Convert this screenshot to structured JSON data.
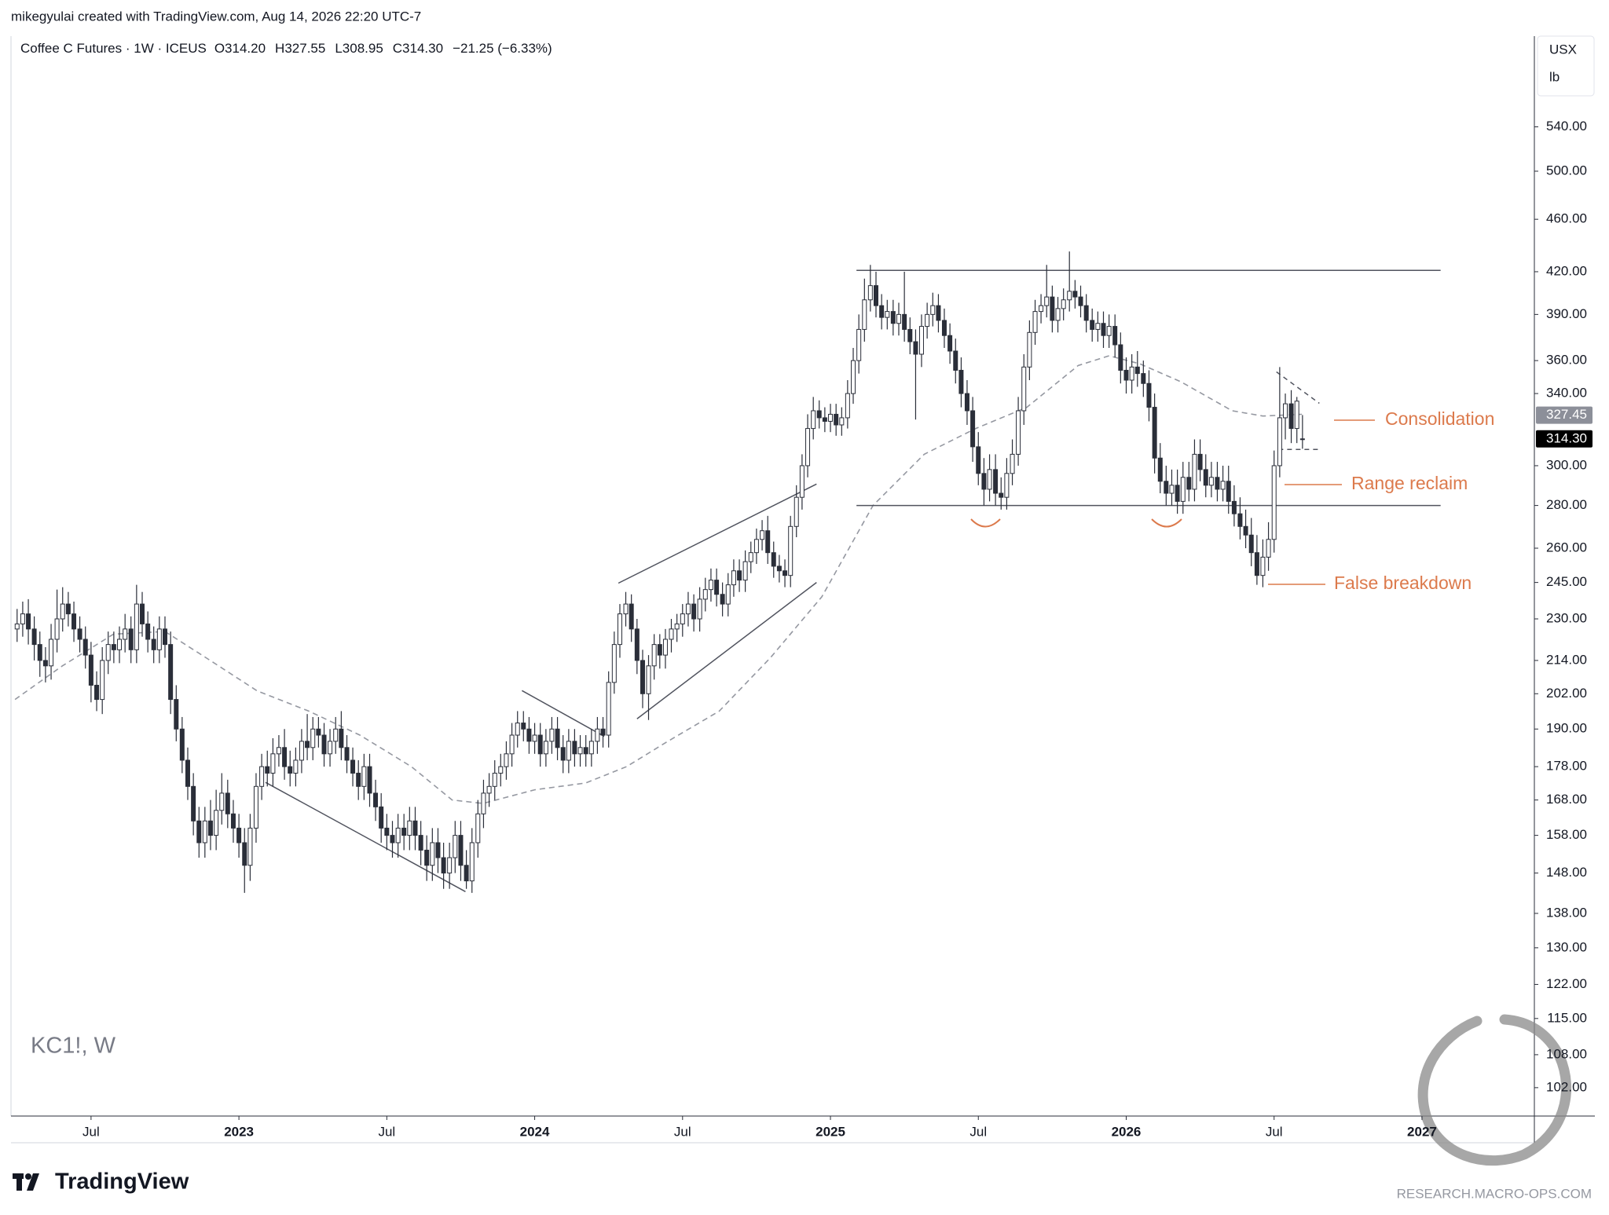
{
  "header": "mikegyulai created with TradingView.com, Aug 14, 2026 22:20 UTC-7",
  "footer": {
    "brand": "TradingView",
    "site": "RESEARCH.MACRO-OPS.COM"
  },
  "chart_data": {
    "type": "candlestick",
    "title": "Coffee C Futures · 1W · ICEUS",
    "legend_values": [
      "O314.20",
      "H327.55",
      "L308.95",
      "C314.30",
      "−21.25 (−6.33%)"
    ],
    "watermark": "KC1!, W",
    "currency": "USX",
    "unit": "lb",
    "log_scale": true,
    "grid": false,
    "up_color": "#ffffff",
    "down_color": "#2a2e39",
    "x": [
      2022.25,
      2022.269,
      2022.288,
      2022.308,
      2022.327,
      2022.346,
      2022.365,
      2022.385,
      2022.404,
      2022.423,
      2022.442,
      2022.462,
      2022.481,
      2022.5,
      2022.519,
      2022.538,
      2022.558,
      2022.577,
      2022.596,
      2022.615,
      2022.635,
      2022.654,
      2022.673,
      2022.692,
      2022.712,
      2022.731,
      2022.75,
      2022.769,
      2022.788,
      2022.808,
      2022.827,
      2022.846,
      2022.865,
      2022.885,
      2022.904,
      2022.923,
      2022.942,
      2022.962,
      2022.981,
      2023,
      2023.019,
      2023.038,
      2023.058,
      2023.077,
      2023.096,
      2023.115,
      2023.135,
      2023.154,
      2023.173,
      2023.192,
      2023.212,
      2023.231,
      2023.25,
      2023.269,
      2023.288,
      2023.308,
      2023.327,
      2023.346,
      2023.365,
      2023.385,
      2023.404,
      2023.423,
      2023.442,
      2023.462,
      2023.481,
      2023.5,
      2023.519,
      2023.538,
      2023.558,
      2023.577,
      2023.596,
      2023.615,
      2023.635,
      2023.654,
      2023.673,
      2023.692,
      2023.712,
      2023.731,
      2023.75,
      2023.769,
      2023.788,
      2023.808,
      2023.827,
      2023.846,
      2023.865,
      2023.885,
      2023.904,
      2023.923,
      2023.942,
      2023.962,
      2023.981,
      2024,
      2024.019,
      2024.038,
      2024.058,
      2024.077,
      2024.096,
      2024.115,
      2024.135,
      2024.154,
      2024.173,
      2024.192,
      2024.212,
      2024.231,
      2024.25,
      2024.269,
      2024.288,
      2024.308,
      2024.327,
      2024.346,
      2024.365,
      2024.385,
      2024.404,
      2024.423,
      2024.442,
      2024.462,
      2024.481,
      2024.5,
      2024.519,
      2024.538,
      2024.558,
      2024.577,
      2024.596,
      2024.615,
      2024.635,
      2024.654,
      2024.673,
      2024.692,
      2024.712,
      2024.731,
      2024.75,
      2024.769,
      2024.788,
      2024.808,
      2024.827,
      2024.846,
      2024.865,
      2024.885,
      2024.904,
      2024.923,
      2024.942,
      2024.962,
      2024.981,
      2025,
      2025.019,
      2025.038,
      2025.058,
      2025.077,
      2025.096,
      2025.115,
      2025.135,
      2025.154,
      2025.173,
      2025.192,
      2025.212,
      2025.231,
      2025.25,
      2025.269,
      2025.288,
      2025.308,
      2025.327,
      2025.346,
      2025.365,
      2025.385,
      2025.404,
      2025.423,
      2025.442,
      2025.462,
      2025.481,
      2025.5,
      2025.519,
      2025.538,
      2025.558,
      2025.577,
      2025.596,
      2025.615,
      2025.635,
      2025.654,
      2025.673,
      2025.692,
      2025.712,
      2025.731,
      2025.75,
      2025.769,
      2025.788,
      2025.808,
      2025.827,
      2025.846,
      2025.865,
      2025.885,
      2025.904,
      2025.923,
      2025.942,
      2025.962,
      2025.981,
      2026,
      2026.019,
      2026.038,
      2026.058,
      2026.077,
      2026.096,
      2026.115,
      2026.135,
      2026.154,
      2026.173,
      2026.192,
      2026.212,
      2026.231,
      2026.25,
      2026.269,
      2026.288,
      2026.308,
      2026.327,
      2026.346,
      2026.365,
      2026.385,
      2026.404,
      2026.423,
      2026.442,
      2026.462,
      2026.481,
      2026.5,
      2026.519,
      2026.538,
      2026.558,
      2026.577,
      2026.596
    ],
    "open": [
      226,
      228,
      232,
      226,
      220,
      214,
      212,
      222,
      230,
      236,
      232,
      226,
      222,
      216,
      205,
      200,
      214,
      220,
      218,
      222,
      226,
      218,
      236,
      228,
      222,
      218,
      226,
      220,
      200,
      190,
      180,
      172,
      162,
      156,
      162,
      158,
      165,
      170,
      164,
      160,
      156,
      150,
      160,
      172,
      178,
      176,
      182,
      184,
      178,
      176,
      180,
      186,
      184,
      190,
      188,
      182,
      186,
      190,
      184,
      180,
      176,
      172,
      178,
      170,
      166,
      160,
      158,
      156,
      160,
      158,
      162,
      158,
      154,
      150,
      156,
      152,
      148,
      152,
      158,
      150,
      146,
      156,
      164,
      170,
      172,
      176,
      178,
      182,
      188,
      192,
      190,
      186,
      188,
      182,
      186,
      190,
      184,
      180,
      186,
      182,
      184,
      182,
      186,
      190,
      188,
      206,
      220,
      232,
      236,
      226,
      214,
      202,
      212,
      220,
      216,
      222,
      226,
      228,
      232,
      236,
      230,
      238,
      242,
      246,
      240,
      236,
      244,
      250,
      246,
      254,
      258,
      264,
      268,
      258,
      252,
      250,
      248,
      270,
      284,
      300,
      320,
      330,
      326,
      324,
      328,
      322,
      326,
      340,
      360,
      380,
      400,
      410,
      396,
      388,
      392,
      384,
      390,
      380,
      372,
      364,
      382,
      390,
      396,
      386,
      376,
      366,
      354,
      340,
      330,
      310,
      296,
      288,
      298,
      286,
      284,
      296,
      306,
      330,
      356,
      378,
      392,
      396,
      402,
      386,
      394,
      400,
      406,
      402,
      396,
      386,
      380,
      384,
      376,
      382,
      370,
      354,
      348,
      356,
      352,
      346,
      332,
      304,
      292,
      286,
      290,
      282,
      294,
      288,
      306,
      298,
      290,
      294,
      288,
      292,
      282,
      276,
      270,
      266,
      258,
      248,
      256,
      264,
      300,
      326,
      334,
      320,
      314.2
    ],
    "high": [
      234,
      237,
      238,
      231,
      225,
      219,
      228,
      242,
      243,
      241,
      237,
      231,
      227,
      221,
      210,
      219,
      225,
      225,
      227,
      232,
      231,
      244,
      241,
      233,
      227,
      231,
      231,
      225,
      205,
      194,
      184,
      176,
      166,
      166,
      168,
      171,
      176,
      174,
      168,
      164,
      160,
      164,
      176,
      182,
      183,
      187,
      188,
      190,
      183,
      184,
      190,
      195,
      194,
      194,
      192,
      190,
      194,
      196,
      188,
      184,
      180,
      182,
      182,
      174,
      170,
      164,
      162,
      164,
      164,
      166,
      166,
      162,
      158,
      160,
      160,
      156,
      156,
      162,
      162,
      154,
      160,
      168,
      174,
      176,
      180,
      182,
      186,
      192,
      196,
      196,
      194,
      192,
      192,
      190,
      194,
      194,
      188,
      190,
      190,
      188,
      188,
      190,
      194,
      194,
      210,
      225,
      236,
      241,
      240,
      230,
      218,
      216,
      224,
      224,
      226,
      230,
      232,
      236,
      241,
      240,
      243,
      247,
      251,
      251,
      245,
      249,
      255,
      255,
      259,
      263,
      269,
      273,
      275,
      263,
      257,
      255,
      275,
      290,
      306,
      328,
      338,
      336,
      332,
      334,
      334,
      332,
      348,
      368,
      390,
      415,
      425,
      420,
      404,
      400,
      400,
      398,
      420,
      388,
      380,
      390,
      398,
      405,
      404,
      394,
      384,
      374,
      362,
      348,
      338,
      318,
      304,
      306,
      306,
      294,
      304,
      314,
      338,
      364,
      386,
      400,
      404,
      425,
      410,
      402,
      408,
      435,
      414,
      410,
      404,
      394,
      392,
      392,
      390,
      390,
      378,
      362,
      364,
      366,
      360,
      354,
      340,
      312,
      300,
      298,
      298,
      302,
      302,
      314,
      314,
      306,
      302,
      302,
      300,
      300,
      290,
      284,
      278,
      274,
      266,
      264,
      272,
      308,
      356,
      340,
      342,
      338,
      327.55
    ],
    "low": [
      221,
      223,
      220,
      214,
      208,
      206,
      207,
      217,
      225,
      227,
      221,
      217,
      211,
      199,
      196,
      195,
      209,
      213,
      213,
      217,
      213,
      213,
      223,
      217,
      213,
      213,
      215,
      195,
      186,
      176,
      168,
      158,
      152,
      152,
      154,
      154,
      161,
      160,
      156,
      152,
      143,
      146,
      156,
      168,
      172,
      172,
      178,
      174,
      172,
      172,
      176,
      180,
      180,
      184,
      178,
      178,
      182,
      180,
      176,
      172,
      168,
      168,
      166,
      162,
      156,
      154,
      152,
      152,
      154,
      154,
      154,
      150,
      146,
      146,
      148,
      144,
      144,
      148,
      146,
      144,
      143,
      152,
      160,
      166,
      168,
      172,
      174,
      178,
      184,
      186,
      182,
      182,
      178,
      178,
      182,
      180,
      176,
      176,
      178,
      178,
      178,
      178,
      182,
      184,
      184,
      202,
      215,
      227,
      221,
      209,
      197,
      193,
      207,
      211,
      211,
      217,
      221,
      223,
      227,
      225,
      225,
      233,
      237,
      235,
      231,
      231,
      239,
      241,
      241,
      249,
      253,
      259,
      253,
      247,
      245,
      243,
      243,
      265,
      278,
      294,
      314,
      320,
      318,
      318,
      316,
      316,
      320,
      334,
      352,
      372,
      392,
      388,
      380,
      380,
      376,
      376,
      372,
      364,
      325,
      356,
      374,
      382,
      378,
      368,
      358,
      346,
      332,
      322,
      302,
      290,
      280,
      282,
      280,
      278,
      278,
      290,
      300,
      322,
      348,
      370,
      384,
      388,
      378,
      378,
      386,
      392,
      394,
      388,
      378,
      372,
      372,
      368,
      368,
      362,
      346,
      340,
      340,
      344,
      338,
      324,
      296,
      286,
      280,
      280,
      276,
      276,
      282,
      282,
      292,
      284,
      284,
      282,
      282,
      276,
      270,
      264,
      260,
      252,
      244,
      243,
      250,
      258,
      294,
      314,
      312,
      312,
      308.95
    ],
    "close": [
      228,
      232,
      226,
      220,
      214,
      212,
      222,
      230,
      236,
      232,
      226,
      222,
      216,
      205,
      200,
      214,
      220,
      218,
      222,
      226,
      218,
      236,
      228,
      222,
      218,
      226,
      220,
      200,
      190,
      180,
      172,
      162,
      156,
      162,
      158,
      165,
      170,
      164,
      160,
      156,
      150,
      160,
      172,
      178,
      176,
      182,
      184,
      178,
      176,
      180,
      186,
      184,
      190,
      188,
      182,
      186,
      190,
      184,
      180,
      176,
      172,
      178,
      170,
      166,
      160,
      158,
      156,
      160,
      158,
      162,
      158,
      154,
      150,
      156,
      152,
      148,
      152,
      158,
      150,
      146,
      156,
      164,
      170,
      172,
      176,
      178,
      182,
      188,
      192,
      190,
      186,
      188,
      182,
      186,
      190,
      184,
      180,
      186,
      182,
      184,
      182,
      186,
      190,
      188,
      206,
      220,
      232,
      236,
      226,
      214,
      202,
      212,
      220,
      216,
      222,
      226,
      228,
      232,
      236,
      230,
      238,
      242,
      246,
      240,
      236,
      244,
      250,
      246,
      254,
      258,
      264,
      268,
      258,
      252,
      250,
      248,
      270,
      284,
      300,
      320,
      330,
      326,
      324,
      328,
      322,
      326,
      340,
      360,
      380,
      400,
      410,
      396,
      388,
      392,
      384,
      390,
      380,
      372,
      364,
      382,
      390,
      396,
      386,
      376,
      366,
      354,
      340,
      330,
      310,
      296,
      288,
      298,
      286,
      284,
      296,
      306,
      330,
      356,
      378,
      392,
      396,
      402,
      386,
      394,
      400,
      406,
      402,
      396,
      386,
      380,
      384,
      376,
      382,
      370,
      354,
      348,
      356,
      352,
      346,
      332,
      304,
      292,
      286,
      290,
      282,
      294,
      288,
      306,
      298,
      290,
      294,
      288,
      292,
      282,
      276,
      270,
      266,
      258,
      248,
      256,
      264,
      300,
      326,
      334,
      320,
      335.55,
      314.3
    ],
    "ma": {
      "color": "#9598a1",
      "x": [
        2022.243,
        2022.403,
        2022.576,
        2022.75,
        2022.889,
        2023.062,
        2023.236,
        2023.409,
        2023.583,
        2023.721,
        2023.825,
        2024.0,
        2024.172,
        2024.311,
        2024.45,
        2024.624,
        2024.797,
        2024.971,
        2025.144,
        2025.317,
        2025.491,
        2025.664,
        2025.838,
        2025.942,
        2026.046,
        2026.185,
        2026.358,
        2026.462,
        2026.594
      ],
      "values": [
        200,
        212,
        224,
        225,
        215,
        203,
        196,
        188,
        178,
        168,
        167,
        171,
        173,
        178,
        186,
        196,
        215,
        239,
        280,
        306,
        320,
        332,
        357,
        363,
        358,
        347,
        330,
        327,
        328
      ]
    },
    "trendlines": [
      {
        "x": [
          2025.088,
          2027.063
        ],
        "y": [
          421,
          421
        ],
        "style": "solid"
      },
      {
        "x": [
          2025.088,
          2027.063
        ],
        "y": [
          280,
          280
        ],
        "style": "solid"
      },
      {
        "x": [
          2023.09,
          2023.766
        ],
        "y": [
          173.2,
          143.3
        ],
        "style": "solid"
      },
      {
        "x": [
          2023.957,
          2024.235
        ],
        "y": [
          203.1,
          187.6
        ],
        "style": "solid"
      },
      {
        "x": [
          2024.283,
          2024.953
        ],
        "y": [
          244.7,
          290.6
        ],
        "style": "solid"
      },
      {
        "x": [
          2024.346,
          2024.953
        ],
        "y": [
          193.4,
          245
        ],
        "style": "solid"
      },
      {
        "x": [
          2026.508,
          2026.653
        ],
        "y": [
          353,
          334.3
        ],
        "style": "dashed"
      },
      {
        "x": [
          2026.515,
          2026.653
        ],
        "y": [
          308.6,
          308.6
        ],
        "style": "dashed"
      }
    ],
    "line_color": "#50535e",
    "annotations": [
      "Consolidation",
      "Range reclaim",
      "False breakdown"
    ],
    "annotation_color": "#dc7a4c",
    "price_labels": [
      327.45,
      {
        "value": 314.3,
        "label": "314.30"
      }
    ],
    "price_label_colors": [
      "#8c8f99",
      "#000000"
    ],
    "xlim": [
      2022.24,
      2027.38
    ],
    "ylim": [
      97.1,
      632
    ],
    "xticks": [
      {
        "value": 2022.5,
        "label": "Jul"
      },
      2023,
      {
        "value": 2023.5,
        "label": "Jul"
      },
      2024,
      {
        "value": 2024.5,
        "label": "Jul"
      },
      2025,
      {
        "value": 2025.5,
        "label": "Jul"
      },
      2026,
      {
        "value": 2026.5,
        "label": "Jul"
      },
      2027
    ],
    "yticks": [
      {
        "value": 102,
        "label": "102.00"
      },
      {
        "value": 108,
        "label": "108.00"
      },
      {
        "value": 115,
        "label": "115.00"
      },
      {
        "value": 122,
        "label": "122.00"
      },
      {
        "value": 130,
        "label": "130.00"
      },
      {
        "value": 138,
        "label": "138.00"
      },
      {
        "value": 148,
        "label": "148.00"
      },
      {
        "value": 158,
        "label": "158.00"
      },
      {
        "value": 168,
        "label": "168.00"
      },
      {
        "value": 178,
        "label": "178.00"
      },
      {
        "value": 190,
        "label": "190.00"
      },
      {
        "value": 202,
        "label": "202.00"
      },
      {
        "value": 214,
        "label": "214.00"
      },
      {
        "value": 230,
        "label": "230.00"
      },
      {
        "value": 245,
        "label": "245.00"
      },
      {
        "value": 260,
        "label": "260.00"
      },
      {
        "value": 280,
        "label": "280.00"
      },
      {
        "value": 300,
        "label": "300.00"
      },
      {
        "value": 340,
        "label": "340.00"
      },
      {
        "value": 360,
        "label": "360.00"
      },
      {
        "value": 390,
        "label": "390.00"
      },
      {
        "value": 420,
        "label": "420.00"
      },
      {
        "value": 460,
        "label": "460.00"
      },
      {
        "value": 500,
        "label": "500.00"
      },
      {
        "value": 540,
        "label": "540.00"
      }
    ]
  }
}
